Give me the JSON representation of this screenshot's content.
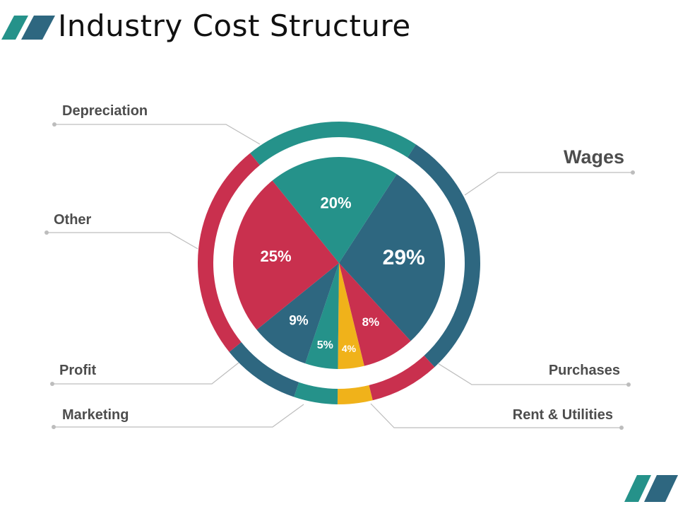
{
  "title": "Industry Cost Structure",
  "colors": {
    "teal": "#25928a",
    "navy": "#2e6780",
    "crimson": "#c9304e",
    "gold": "#f0b21a",
    "label": "#4d4d4d",
    "leader": "#bdbdbd"
  },
  "chart_data": {
    "type": "pie",
    "title": "Industry Cost Structure",
    "unit": "%",
    "slices": [
      {
        "name": "Wages",
        "value": 29,
        "label": "29%",
        "color": "#2e6780"
      },
      {
        "name": "Purchases",
        "value": 8,
        "label": "8%",
        "color": "#c9304e"
      },
      {
        "name": "Rent & Utilities",
        "value": 4,
        "label": "4%",
        "color": "#f0b21a"
      },
      {
        "name": "Marketing",
        "value": 5,
        "label": "5%",
        "color": "#25928a"
      },
      {
        "name": "Profit",
        "value": 9,
        "label": "9%",
        "color": "#2e6780"
      },
      {
        "name": "Other",
        "value": 25,
        "label": "25%",
        "color": "#c9304e"
      },
      {
        "name": "Depreciation",
        "value": 20,
        "label": "20%",
        "color": "#25928a"
      }
    ],
    "legend": "callout labels around the pie"
  }
}
